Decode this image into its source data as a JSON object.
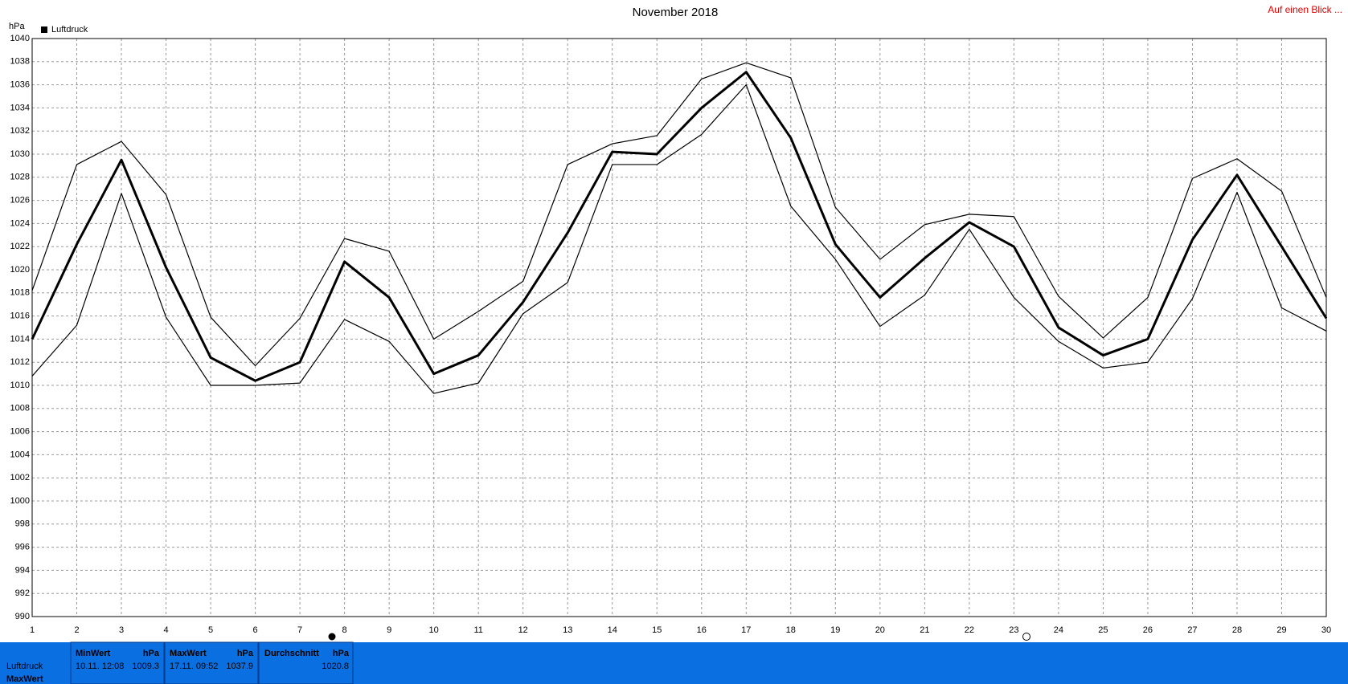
{
  "chart_data": {
    "type": "line",
    "title": "November 2018",
    "y_unit": "hPa",
    "link": "Auf einen Blick ...",
    "x": [
      1,
      2,
      3,
      4,
      5,
      6,
      7,
      8,
      9,
      10,
      11,
      12,
      13,
      14,
      15,
      16,
      17,
      18,
      19,
      20,
      21,
      22,
      23,
      24,
      25,
      26,
      27,
      28,
      29,
      30
    ],
    "xlim": [
      1,
      30
    ],
    "xticks": [
      1,
      2,
      3,
      4,
      5,
      6,
      7,
      8,
      9,
      10,
      11,
      12,
      13,
      14,
      15,
      16,
      17,
      18,
      19,
      20,
      21,
      22,
      23,
      24,
      25,
      26,
      27,
      28,
      29,
      30
    ],
    "ylim": [
      990,
      1040
    ],
    "yticks": [
      990,
      992,
      994,
      996,
      998,
      1000,
      1002,
      1004,
      1006,
      1008,
      1010,
      1012,
      1014,
      1016,
      1018,
      1020,
      1022,
      1024,
      1026,
      1028,
      1030,
      1032,
      1034,
      1036,
      1038,
      1040
    ],
    "grid": true,
    "series": [
      {
        "name": "Luftdruck",
        "color": "#000000",
        "width": 3,
        "values": [
          1014,
          1022.2,
          1029.5,
          1020.2,
          1012.4,
          1010.4,
          1012,
          1020.7,
          1017.6,
          1011,
          1012.6,
          1017.2,
          1023.2,
          1030.2,
          1030,
          1034,
          1037.1,
          1031.4,
          1022.2,
          1017.6,
          1021,
          1024.1,
          1022,
          1015,
          1012.6,
          1014,
          1022.6,
          1028.2,
          1022,
          1015.8
        ]
      },
      {
        "color": "#000000",
        "width": 1.2,
        "values": [
          1018.2,
          1029.1,
          1031.1,
          1026.5,
          1015.9,
          1011.7,
          1015.8,
          1022.7,
          1021.6,
          1014,
          1016.4,
          1019,
          1029.1,
          1030.9,
          1031.6,
          1036.5,
          1037.9,
          1036.6,
          1025.4,
          1020.9,
          1023.9,
          1024.8,
          1024.6,
          1017.7,
          1014.1,
          1017.6,
          1027.9,
          1029.6,
          1026.8,
          1017.6
        ]
      },
      {
        "color": "#000000",
        "width": 1.2,
        "values": [
          1010.8,
          1015.2,
          1026.6,
          1015.9,
          1010,
          1010,
          1010.2,
          1015.7,
          1013.8,
          1009.3,
          1010.2,
          1016.2,
          1018.9,
          1029.1,
          1029.1,
          1031.7,
          1036,
          1025.5,
          1020.9,
          1015.1,
          1017.8,
          1023.5,
          1017.6,
          1013.8,
          1011.5,
          1012,
          1017.5,
          1026.7,
          1016.7,
          1014.7
        ]
      }
    ]
  },
  "table": {
    "row_label": "Luftdruck",
    "row_label_2": "MaxWert",
    "columns": [
      {
        "header": "MinWert",
        "unit": "hPa",
        "time": "10.11.  12:08",
        "value": 1009.3
      },
      {
        "header": "MaxWert",
        "unit": "hPa",
        "time": "17.11.  09:52",
        "value": 1037.9
      },
      {
        "header": "Durchschnitt",
        "unit": "hPa",
        "value": 1020.8
      }
    ]
  }
}
